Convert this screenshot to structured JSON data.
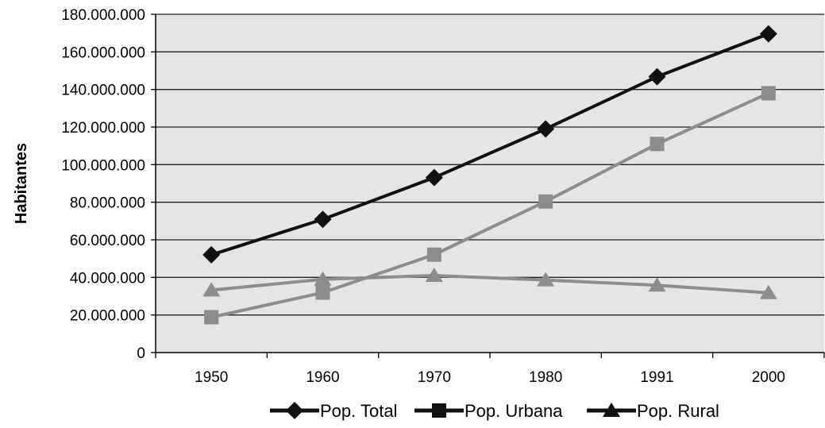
{
  "chart_data": {
    "type": "line",
    "ylabel": "Habitantes",
    "xlabel": "",
    "ylim": [
      0,
      180000000
    ],
    "y_ticks": [
      "0",
      "20.000.000",
      "40.000.000",
      "60.000.000",
      "80.000.000",
      "100.000.000",
      "120.000.000",
      "140.000.000",
      "160.000.000",
      "180.000.000"
    ],
    "categories": [
      "1950",
      "1960",
      "1970",
      "1980",
      "1991",
      "2000"
    ],
    "grid": true,
    "legend_position": "bottom",
    "series": [
      {
        "name": "Pop. Total",
        "marker": "diamond",
        "color": "#111111",
        "legend_color": "#111111",
        "values": [
          52000000,
          70900000,
          93100000,
          119000000,
          146800000,
          169600000
        ]
      },
      {
        "name": "Pop. Urbana",
        "marker": "square",
        "color": "#8c8c8c",
        "legend_color": "#111111",
        "values": [
          18800000,
          31900000,
          52100000,
          80400000,
          111000000,
          138000000
        ]
      },
      {
        "name": "Pop. Rural",
        "marker": "triangle",
        "color": "#8c8c8c",
        "legend_color": "#111111",
        "values": [
          33200000,
          39000000,
          41000000,
          38600000,
          35800000,
          31800000
        ]
      }
    ],
    "colors": {
      "plot_background": "#e5e5e5",
      "gridline": "#222222"
    }
  }
}
